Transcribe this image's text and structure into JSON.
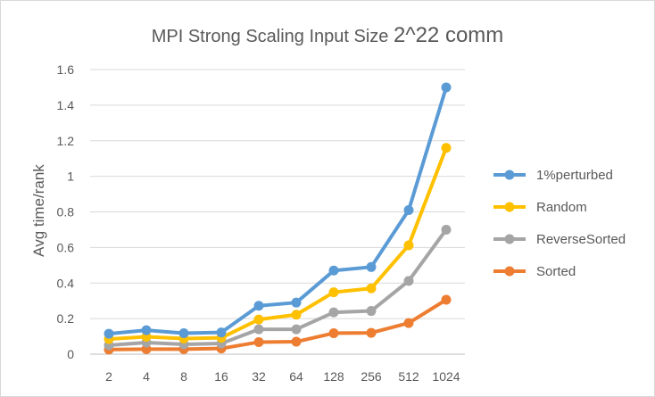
{
  "chart_data": {
    "type": "line",
    "title_main": "MPI Strong Scaling Input Size ",
    "title_size": "2^22 comm",
    "xlabel": "",
    "ylabel": "Avg time/rank",
    "categories": [
      "2",
      "4",
      "8",
      "16",
      "32",
      "64",
      "128",
      "256",
      "512",
      "1024"
    ],
    "ylim": [
      0,
      1.6
    ],
    "yticks": [
      "0",
      "0.2",
      "0.4",
      "0.6",
      "0.8",
      "1",
      "1.2",
      "1.4",
      "1.6"
    ],
    "grid": true,
    "legend_position": "right",
    "series": [
      {
        "name": "1%perturbed",
        "color": "#5B9BD5",
        "values": [
          0.115,
          0.135,
          0.118,
          0.122,
          0.272,
          0.29,
          0.47,
          0.49,
          0.81,
          1.5
        ]
      },
      {
        "name": "Random",
        "color": "#FFC000",
        "values": [
          0.085,
          0.098,
          0.088,
          0.092,
          0.195,
          0.222,
          0.348,
          0.37,
          0.612,
          1.16
        ]
      },
      {
        "name": "ReverseSorted",
        "color": "#A5A5A5",
        "values": [
          0.05,
          0.065,
          0.055,
          0.06,
          0.14,
          0.14,
          0.235,
          0.243,
          0.412,
          0.7
        ]
      },
      {
        "name": "Sorted",
        "color": "#ED7D31",
        "values": [
          0.026,
          0.028,
          0.028,
          0.032,
          0.068,
          0.07,
          0.118,
          0.12,
          0.175,
          0.306
        ]
      }
    ]
  }
}
